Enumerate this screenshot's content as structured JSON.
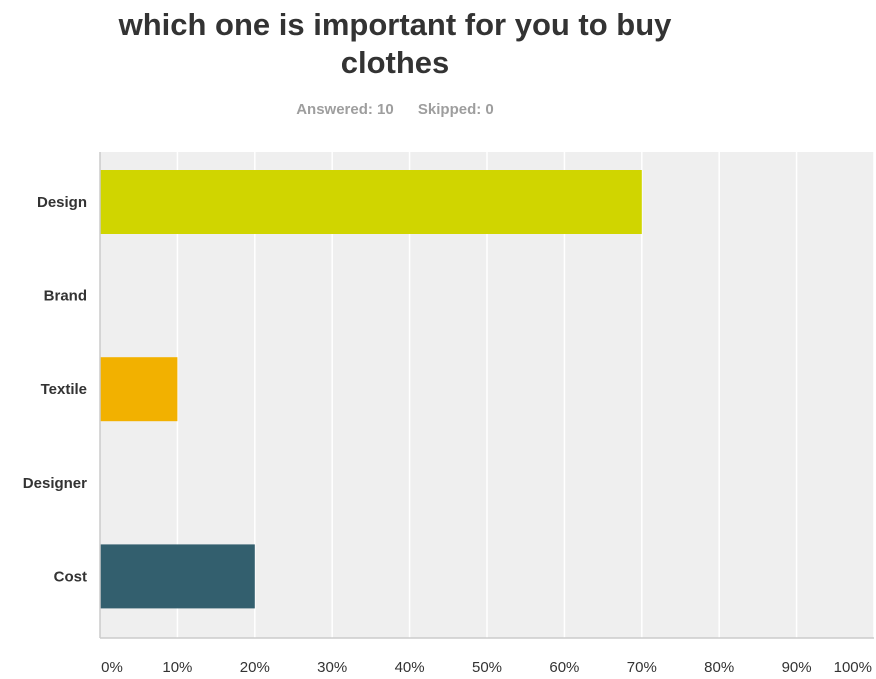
{
  "title": {
    "line1": "which one is important for you to buy",
    "line2": "clothes"
  },
  "meta": {
    "answered": "Answered: 10",
    "skipped": "Skipped: 0"
  },
  "colors": {
    "plot_background": "#efefef",
    "gridline": "#ffffff",
    "axis": "#cccccc"
  },
  "chart_data": {
    "type": "bar",
    "orientation": "horizontal",
    "title": "which one is important for you to buy clothes",
    "xlabel": "",
    "ylabel": "",
    "categories": [
      "Design",
      "Brand",
      "Textile",
      "Designer",
      "Cost"
    ],
    "values": [
      70,
      0,
      10,
      0,
      20
    ],
    "colors": [
      "#d0d500",
      "#ffffff",
      "#f2b100",
      "#ffffff",
      "#335f6e"
    ],
    "xlim": [
      0,
      100
    ],
    "xticks": [
      "0%",
      "10%",
      "20%",
      "30%",
      "40%",
      "50%",
      "60%",
      "70%",
      "80%",
      "90%",
      "100%"
    ],
    "grid": true,
    "legend": "none"
  }
}
